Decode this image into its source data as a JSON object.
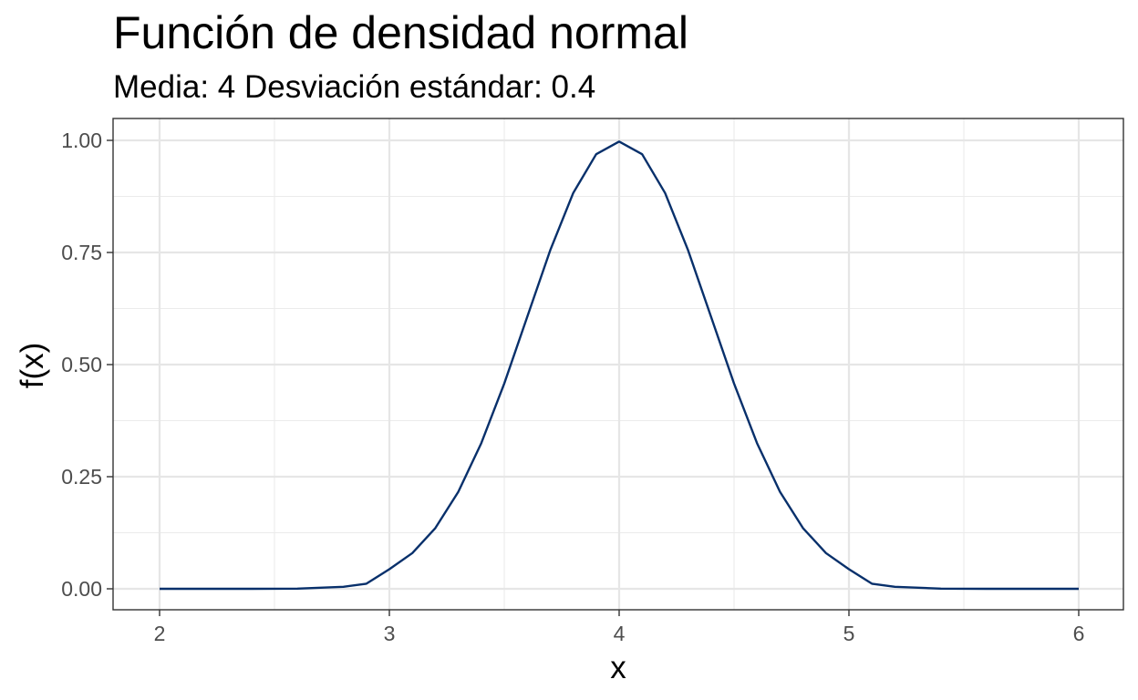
{
  "chart_data": {
    "type": "line",
    "title": "Función de densidad normal",
    "subtitle": "Media: 4 Desviación estándar: 0.4",
    "xlabel": "x",
    "ylabel": "f(x)",
    "xlim": [
      2,
      6
    ],
    "ylim": [
      0,
      1.0
    ],
    "x_ticks": [
      2,
      3,
      4,
      5,
      6
    ],
    "x_tick_labels": [
      "2",
      "3",
      "4",
      "5",
      "6"
    ],
    "y_ticks": [
      0,
      0.25,
      0.5,
      0.75,
      1.0
    ],
    "y_tick_labels": [
      "0.00",
      "0.25",
      "0.50",
      "0.75",
      "1.00"
    ],
    "grid": true,
    "line_color": "#08306b",
    "series": [
      {
        "x": [
          2.0,
          2.2,
          2.4,
          2.6,
          2.8,
          2.9,
          3.0,
          3.1,
          3.2,
          3.3,
          3.4,
          3.5,
          3.6,
          3.7,
          3.8,
          3.9,
          4.0,
          4.1,
          4.2,
          4.3,
          4.4,
          4.5,
          4.6,
          4.7,
          4.8,
          4.9,
          5.0,
          5.1,
          5.2,
          5.4,
          5.6,
          5.8,
          6.0
        ],
        "y": [
          0.0,
          0.0,
          0.0,
          0.0005,
          0.0044,
          0.0113,
          0.0438,
          0.0797,
          0.1353,
          0.2163,
          0.3247,
          0.4578,
          0.6065,
          0.7548,
          0.8825,
          0.9692,
          0.9974,
          0.9692,
          0.8825,
          0.7548,
          0.6065,
          0.4578,
          0.3247,
          0.2163,
          0.1353,
          0.0797,
          0.0438,
          0.0113,
          0.0044,
          0.0005,
          0.0,
          0.0,
          0.0
        ]
      }
    ]
  }
}
